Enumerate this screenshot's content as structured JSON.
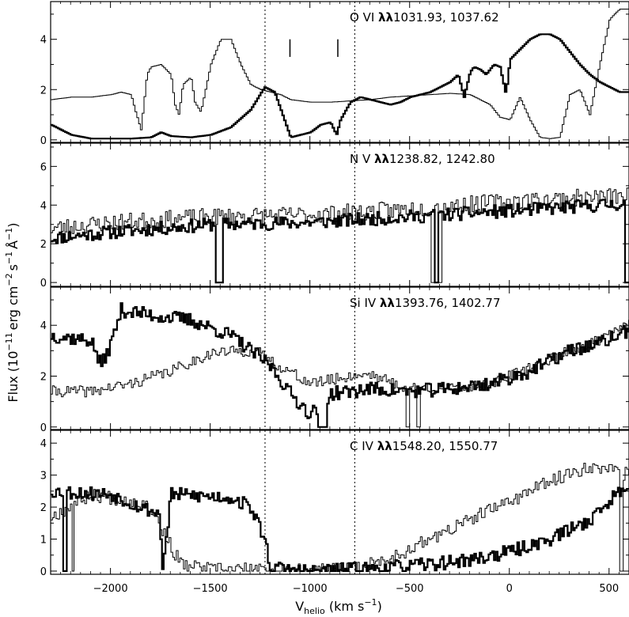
{
  "figure": {
    "ylabel_main": "Flux (10",
    "ylabel_exp1": "−11",
    "ylabel_mid": "erg cm",
    "ylabel_exp2": "−2",
    "ylabel_s": "s",
    "ylabel_exp3": "−1",
    "ylabel_ang": "Å",
    "ylabel_exp4": "−1",
    "ylabel_close": ")",
    "xlabel_v": "V",
    "xlabel_sub": "helio",
    "xlabel_units": " (km s",
    "xlabel_exp": "−1",
    "xlabel_close": ")"
  },
  "chart_data": {
    "type": "line",
    "xlim": [
      -2300,
      600
    ],
    "x_ticks": [
      -2000,
      -1500,
      -1000,
      -500,
      0,
      500
    ],
    "x_tick_labels": [
      "−2000",
      "−1500",
      "−1000",
      "−500",
      "0",
      "500"
    ],
    "vertical_markers": [
      -1225,
      -775
    ],
    "panels": [
      {
        "title_ion": "O VI ",
        "title_ll": "λλ",
        "title_rest": "1031.93, 1037.62",
        "ylim": [
          -0.1,
          5.5
        ],
        "y_ticks": [
          0,
          2,
          4
        ],
        "y_tick_labels": [
          "0",
          "2",
          "4"
        ],
        "tick_marks": [
          -1100,
          -860
        ],
        "series": [
          {
            "style": "thick",
            "x": [
              -2300,
              -2200,
              -2100,
              -2000,
              -1900,
              -1800,
              -1750,
              -1700,
              -1600,
              -1500,
              -1400,
              -1300,
              -1230,
              -1180,
              -1140,
              -1100,
              -1050,
              -1000,
              -950,
              -900,
              -870,
              -850,
              -800,
              -750,
              -700,
              -650,
              -600,
              -550,
              -500,
              -450,
              -400,
              -350,
              -300,
              -260,
              -230,
              -200,
              -180,
              -150,
              -120,
              -80,
              -50,
              -20,
              0,
              50,
              100,
              150,
              200,
              250,
              300,
              350,
              400,
              450,
              500,
              550,
              600
            ],
            "y": [
              0.6,
              0.2,
              0.05,
              0.05,
              0.05,
              0.1,
              0.3,
              0.15,
              0.1,
              0.2,
              0.5,
              1.2,
              2.1,
              1.9,
              1.0,
              0.1,
              0.2,
              0.3,
              0.6,
              0.7,
              0.2,
              0.8,
              1.5,
              1.7,
              1.6,
              1.5,
              1.4,
              1.5,
              1.7,
              1.8,
              1.9,
              2.1,
              2.3,
              2.6,
              1.7,
              2.7,
              2.9,
              2.8,
              2.6,
              3.0,
              2.9,
              1.8,
              3.2,
              3.6,
              4.0,
              4.2,
              4.2,
              4.0,
              3.5,
              3.0,
              2.6,
              2.3,
              2.1,
              1.9,
              1.9
            ]
          },
          {
            "style": "thin",
            "x": [
              -2300,
              -2200,
              -2100,
              -2000,
              -1950,
              -1900,
              -1880,
              -1850,
              -1820,
              -1800,
              -1750,
              -1700,
              -1680,
              -1660,
              -1640,
              -1600,
              -1580,
              -1550,
              -1500,
              -1450,
              -1400,
              -1350,
              -1300,
              -1250,
              -1200,
              -1150,
              -1100,
              -1000,
              -900,
              -800,
              -700,
              -600,
              -500,
              -400,
              -300,
              -200,
              -100,
              -50,
              0,
              50,
              100,
              150,
              200,
              250,
              300,
              350,
              400,
              450,
              500,
              550,
              600
            ],
            "y": [
              1.6,
              1.7,
              1.7,
              1.8,
              1.9,
              1.8,
              1.2,
              0.4,
              2.6,
              2.9,
              3.0,
              2.6,
              1.4,
              1.0,
              2.2,
              2.5,
              1.5,
              1.1,
              3.0,
              4.0,
              4.0,
              3.0,
              2.2,
              2.0,
              1.9,
              1.8,
              1.6,
              1.5,
              1.5,
              1.55,
              1.6,
              1.7,
              1.75,
              1.8,
              1.85,
              1.8,
              1.4,
              0.9,
              0.8,
              1.7,
              0.8,
              0.1,
              0.05,
              0.1,
              1.8,
              2.0,
              1.0,
              3.0,
              4.8,
              5.2,
              5.2
            ]
          }
        ]
      },
      {
        "title_ion": "N V ",
        "title_ll": "λλ",
        "title_rest": "1238.82, 1242.80",
        "ylim": [
          -0.2,
          7.2
        ],
        "y_ticks": [
          0,
          2,
          4,
          6
        ],
        "y_tick_labels": [
          "0",
          "2",
          "4",
          "6"
        ],
        "tick_marks": [],
        "series": [
          {
            "style": "thick",
            "base": [
              [
                -2300,
                2.3
              ],
              [
                -2000,
                2.6
              ],
              [
                -1500,
                3.0
              ],
              [
                -1000,
                3.1
              ],
              [
                -500,
                3.4
              ],
              [
                0,
                3.7
              ],
              [
                600,
                4.1
              ]
            ],
            "noise": 0.35,
            "seed": 11,
            "dips": [
              [
                -1480,
                -1445,
                0.0
              ],
              [
                -375,
                -360,
                0.0
              ],
              [
                575,
                600,
                0.0
              ]
            ]
          },
          {
            "style": "thin",
            "base": [
              [
                -2300,
                2.8
              ],
              [
                -2000,
                3.1
              ],
              [
                -1500,
                3.4
              ],
              [
                -1000,
                3.5
              ],
              [
                -500,
                3.8
              ],
              [
                0,
                4.2
              ],
              [
                600,
                4.5
              ]
            ],
            "noise": 0.45,
            "seed": 23,
            "dips": [
              [
                -395,
                -380,
                0.0
              ],
              [
                -360,
                -345,
                0.0
              ]
            ]
          }
        ]
      },
      {
        "title_ion": "Si IV ",
        "title_ll": "λλ",
        "title_rest": "1393.76, 1402.77",
        "ylim": [
          -0.1,
          5.5
        ],
        "y_ticks": [
          0,
          2,
          4
        ],
        "y_tick_labels": [
          "0",
          "2",
          "4"
        ],
        "tick_marks": [],
        "series": [
          {
            "style": "thick",
            "base": [
              [
                -2300,
                3.6
              ],
              [
                -2100,
                3.4
              ],
              [
                -2050,
                2.4
              ],
              [
                -2000,
                3.3
              ],
              [
                -1950,
                4.6
              ],
              [
                -1800,
                4.4
              ],
              [
                -1600,
                4.2
              ],
              [
                -1400,
                3.6
              ],
              [
                -1300,
                3.0
              ],
              [
                -1200,
                2.4
              ],
              [
                -1100,
                1.3
              ],
              [
                -1000,
                0.5
              ],
              [
                -900,
                1.3
              ],
              [
                -700,
                1.5
              ],
              [
                -500,
                1.4
              ],
              [
                -300,
                1.5
              ],
              [
                -100,
                1.7
              ],
              [
                100,
                2.2
              ],
              [
                300,
                3.0
              ],
              [
                450,
                3.3
              ],
              [
                600,
                3.8
              ]
            ],
            "noise": 0.28,
            "seed": 37,
            "dips": [
              [
                -960,
                -920,
                0.0
              ]
            ]
          },
          {
            "style": "thin",
            "base": [
              [
                -2300,
                1.4
              ],
              [
                -2100,
                1.4
              ],
              [
                -1900,
                1.7
              ],
              [
                -1700,
                2.2
              ],
              [
                -1500,
                2.9
              ],
              [
                -1350,
                3.0
              ],
              [
                -1250,
                2.9
              ],
              [
                -1200,
                2.6
              ],
              [
                -1000,
                1.7
              ],
              [
                -800,
                2.0
              ],
              [
                -700,
                2.1
              ],
              [
                -550,
                1.6
              ],
              [
                -300,
                1.5
              ],
              [
                -100,
                1.7
              ],
              [
                100,
                2.3
              ],
              [
                300,
                3.0
              ],
              [
                450,
                3.4
              ],
              [
                600,
                4.1
              ]
            ],
            "noise": 0.22,
            "seed": 41,
            "dips": [
              [
                -520,
                -505,
                0.0
              ],
              [
                -470,
                -455,
                0.0
              ]
            ]
          }
        ]
      },
      {
        "title_ion": "C IV ",
        "title_ll": "λλ",
        "title_rest": "1548.20, 1550.77",
        "ylim": [
          -0.1,
          4.4
        ],
        "y_ticks": [
          0,
          1,
          2,
          3,
          4
        ],
        "y_tick_labels": [
          "0",
          "1",
          "2",
          "3",
          "4"
        ],
        "tick_marks": [],
        "series": [
          {
            "style": "thick",
            "base": [
              [
                -2300,
                2.5
              ],
              [
                -2000,
                2.4
              ],
              [
                -1850,
                2.0
              ],
              [
                -1760,
                1.8
              ],
              [
                -1740,
                0.05
              ],
              [
                -1700,
                2.4
              ],
              [
                -1400,
                2.3
              ],
              [
                -1300,
                2.0
              ],
              [
                -1230,
                1.0
              ],
              [
                -1200,
                0.1
              ],
              [
                -1000,
                0.0
              ],
              [
                -800,
                0.05
              ],
              [
                -500,
                0.15
              ],
              [
                -200,
                0.35
              ],
              [
                0,
                0.6
              ],
              [
                200,
                1.0
              ],
              [
                400,
                1.6
              ],
              [
                600,
                2.8
              ]
            ],
            "noise": 0.22,
            "seed": 53,
            "dips": [
              [
                -2240,
                -2220,
                0.0
              ]
            ]
          },
          {
            "style": "thin",
            "base": [
              [
                -2300,
                1.7
              ],
              [
                -2100,
                2.4
              ],
              [
                -1900,
                2.2
              ],
              [
                -1800,
                2.0
              ],
              [
                -1720,
                1.0
              ],
              [
                -1650,
                0.2
              ],
              [
                -1500,
                0.05
              ],
              [
                -1200,
                0.03
              ],
              [
                -1000,
                0.0
              ],
              [
                -800,
                0.05
              ],
              [
                -600,
                0.4
              ],
              [
                -400,
                1.0
              ],
              [
                -200,
                1.6
              ],
              [
                0,
                2.2
              ],
              [
                200,
                2.8
              ],
              [
                400,
                3.3
              ],
              [
                600,
                3.0
              ]
            ],
            "noise": 0.22,
            "seed": 67,
            "dips": [
              [
                -2200,
                -2185,
                0.0
              ],
              [
                550,
                565,
                0.0
              ]
            ]
          }
        ]
      }
    ]
  }
}
